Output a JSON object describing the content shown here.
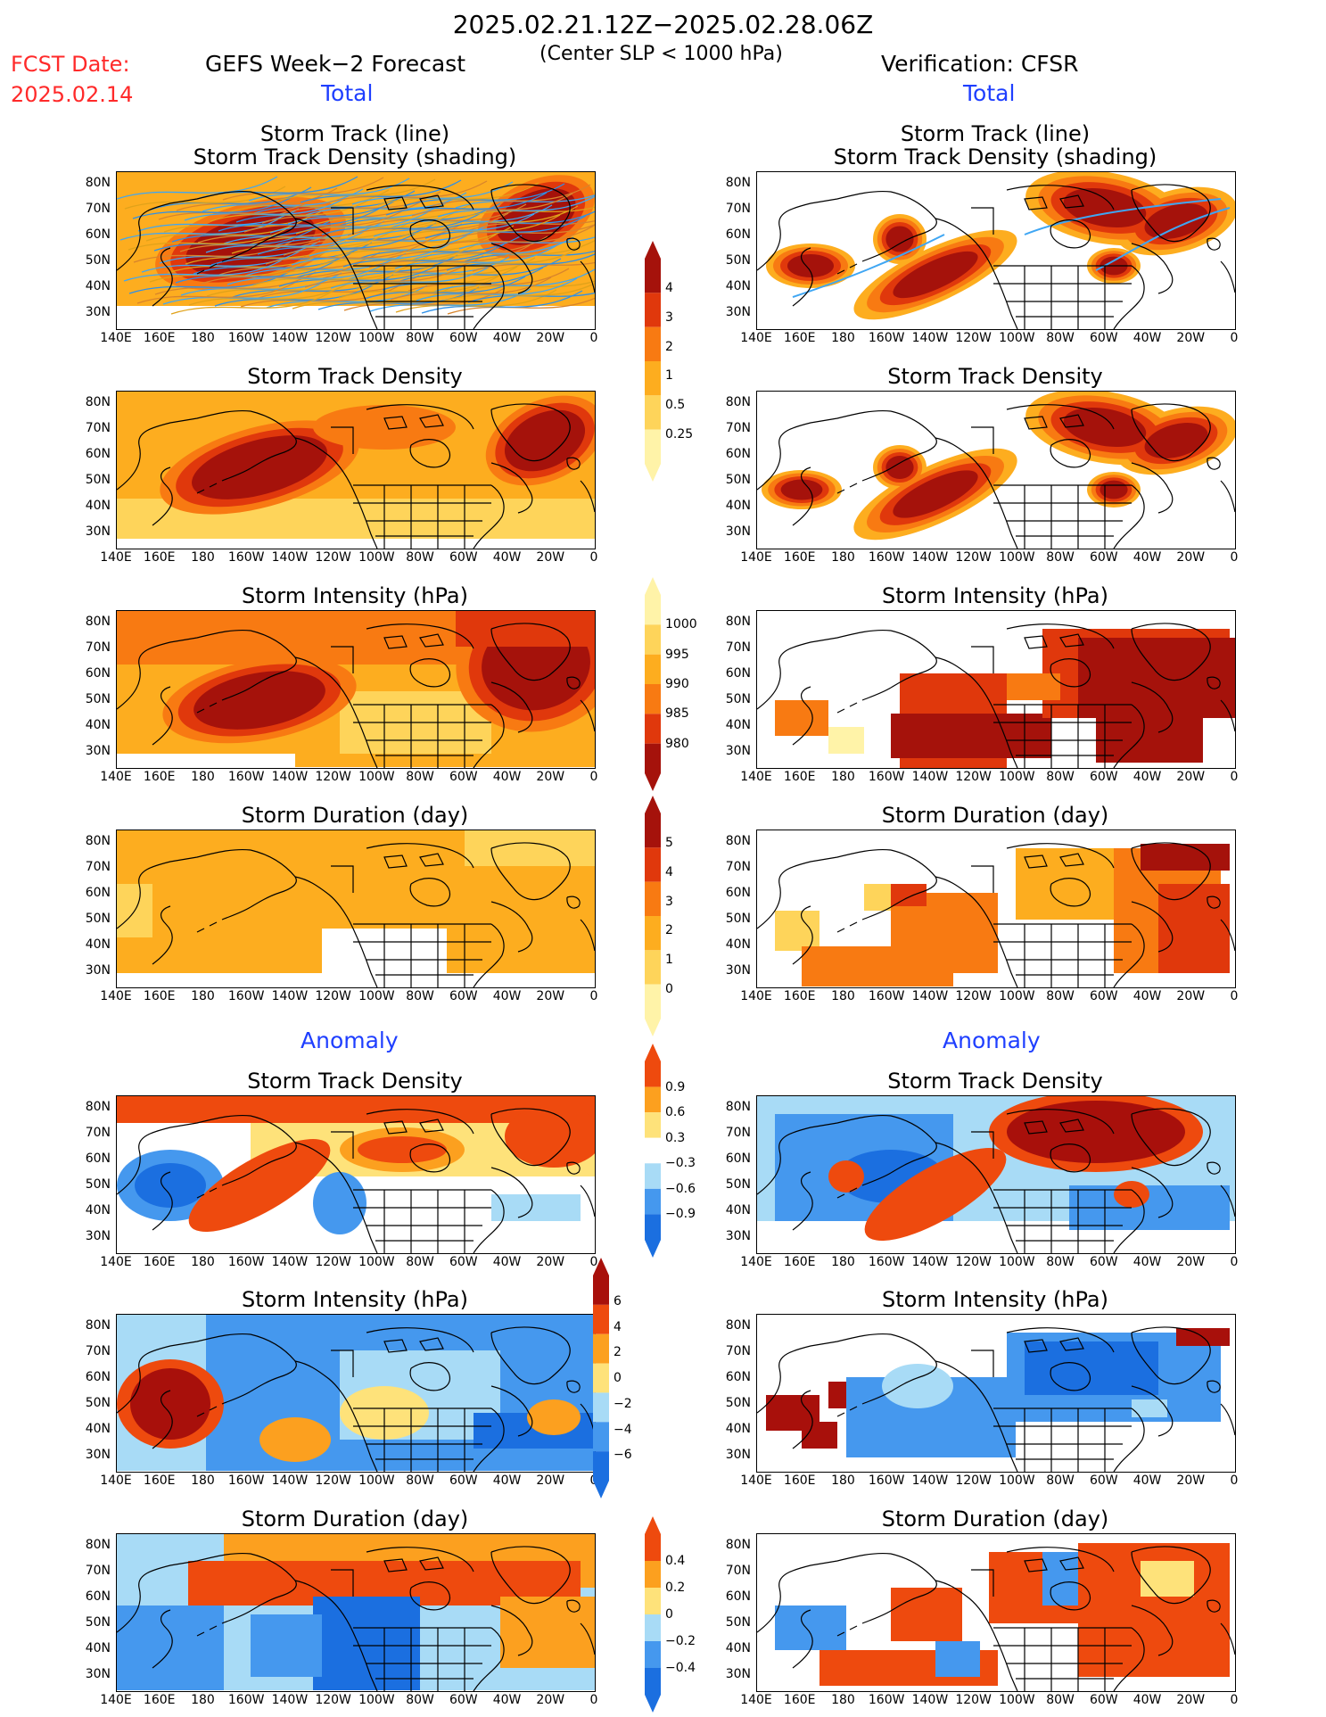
{
  "header": {
    "period": "2025.02.21.12Z−2025.02.28.06Z",
    "criterion": "(Center SLP < 1000 hPa)",
    "fcst_label": "FCST Date:",
    "fcst_date": "2025.02.14",
    "left_title": "GEFS Week−2 Forecast",
    "right_title": "Verification: CFSR",
    "total": "Total",
    "anomaly": "Anomaly"
  },
  "panels": {
    "track_line": [
      "Storm Track (line)",
      "Storm Track Density (shading)"
    ],
    "density": "Storm Track Density",
    "intensity": "Storm Intensity (hPa)",
    "duration": "Storm Duration (day)"
  },
  "axes": {
    "lat": [
      "80N",
      "70N",
      "60N",
      "50N",
      "40N",
      "30N"
    ],
    "lon": [
      "140E",
      "160E",
      "180",
      "160W",
      "140W",
      "120W",
      "100W",
      "80W",
      "60W",
      "40W",
      "20W",
      "0"
    ]
  },
  "colorbars": {
    "density": [
      "4",
      "3",
      "2",
      "1",
      "0.5",
      "0.25"
    ],
    "intensity": [
      "1000",
      "995",
      "990",
      "985",
      "980"
    ],
    "duration": [
      "5",
      "4",
      "3",
      "2",
      "1",
      "0"
    ],
    "density_anom": [
      "0.9",
      "0.6",
      "0.3",
      "−0.3",
      "−0.6",
      "−0.9"
    ],
    "intensity_anom": [
      "6",
      "4",
      "2",
      "0",
      "−2",
      "−4",
      "−6"
    ],
    "duration_anom": [
      "0.4",
      "0.2",
      "0",
      "−0.2",
      "−0.4"
    ]
  },
  "colors": {
    "seq": [
      "#fff3a8",
      "#fed45a",
      "#fdad1f",
      "#f87a12",
      "#e0380c",
      "#a5120b"
    ],
    "div": [
      "#1b6fe0",
      "#4598ee",
      "#a8dbf6",
      "#ffffff",
      "#fee27a",
      "#fca01f",
      "#ee4a0e",
      "#a8100b"
    ]
  }
}
